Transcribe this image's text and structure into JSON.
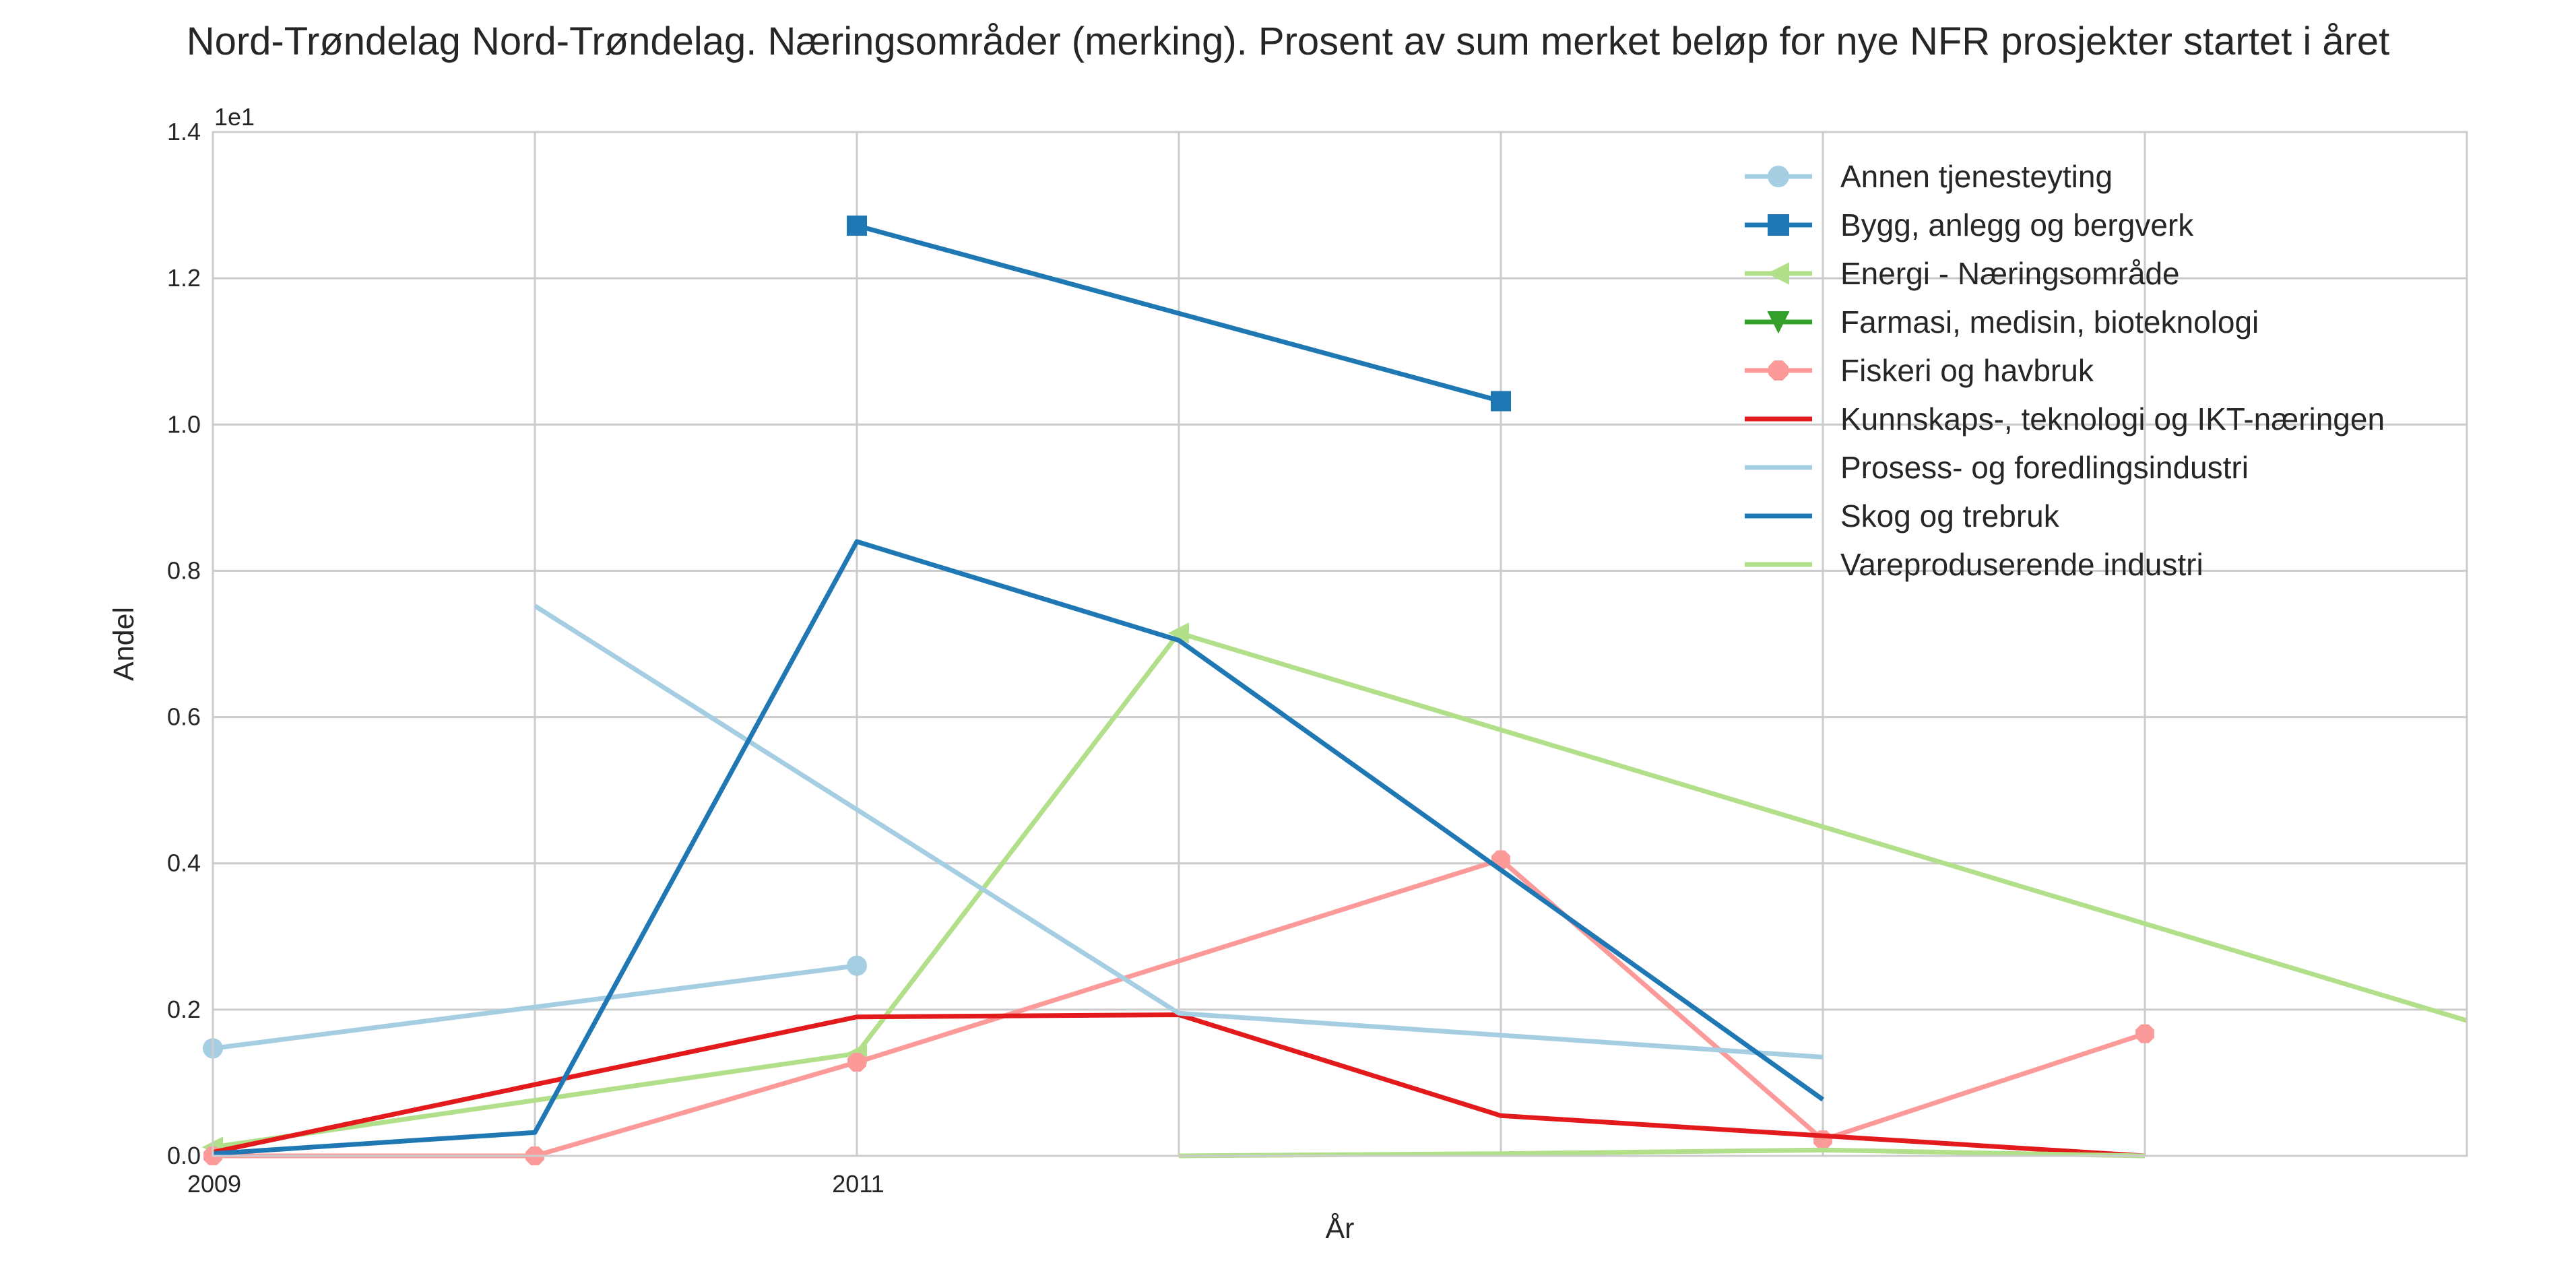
{
  "chart_data": {
    "type": "line",
    "title": "Nord-Trøndelag Nord-Trøndelag. Næringsområder (merking). Prosent av sum merket beløp for nye NFR prosjekter startet i året",
    "xlabel": "År",
    "ylabel": "Andel",
    "y_offset_label": "1e1",
    "xlim": [
      2009,
      2016
    ],
    "ylim": [
      0,
      1.4
    ],
    "x_tick_values": [
      2009,
      2011
    ],
    "x_tick_labels": [
      "2009",
      "2011"
    ],
    "x_gridlines": [
      2009,
      2010,
      2011,
      2012,
      2013,
      2014,
      2015,
      2016
    ],
    "y_ticks": [
      0.0,
      0.2,
      0.4,
      0.6,
      0.8,
      1.0,
      1.2,
      1.4
    ],
    "y_tick_labels": [
      "0.0",
      "0.2",
      "0.4",
      "0.6",
      "0.8",
      "1.0",
      "1.2",
      "1.4"
    ],
    "grid": true,
    "legend_position": "top-right",
    "series": [
      {
        "name": "Annen tjenesteyting",
        "color": "#a6cee3",
        "marker": "circle",
        "x": [
          2009,
          2011
        ],
        "y": [
          0.147,
          0.26
        ]
      },
      {
        "name": "Bygg, anlegg og bergverk",
        "color": "#1f78b4",
        "marker": "square",
        "x": [
          2011,
          2013
        ],
        "y": [
          1.272,
          1.032
        ]
      },
      {
        "name": "Energi - Næringsområde",
        "color": "#b2df8a",
        "marker": "triangle-left",
        "x": [
          2009,
          2011,
          2012
        ],
        "y": [
          0.012,
          0.14,
          0.715
        ]
      },
      {
        "name": "Farmasi, medisin, bioteknologi",
        "color": "#33a02c",
        "marker": "triangle-down",
        "x": [],
        "y": []
      },
      {
        "name": "Fiskeri og havbruk",
        "color": "#fb9a99",
        "marker": "octagon",
        "x": [
          2009,
          2010,
          2011,
          2013,
          2014,
          2015
        ],
        "y": [
          0.0,
          0.0,
          0.128,
          0.405,
          0.022,
          0.167
        ]
      },
      {
        "name": "Kunnskaps-, teknologi og IKT-næringen",
        "color": "#e31a1c",
        "marker": "none",
        "x": [
          2009,
          2011,
          2012,
          2013,
          2015
        ],
        "y": [
          0.005,
          0.19,
          0.193,
          0.055,
          0.0
        ]
      },
      {
        "name": "Prosess- og foredlingsindustri",
        "color": "#a6cee3",
        "marker": "none",
        "x": [
          2010,
          2012,
          2014
        ],
        "y": [
          0.752,
          0.195,
          0.135
        ]
      },
      {
        "name": "Skog og trebruk",
        "color": "#1f78b4",
        "marker": "none",
        "x": [
          2009,
          2010,
          2011,
          2012,
          2014
        ],
        "y": [
          0.003,
          0.032,
          0.84,
          0.705,
          0.077
        ]
      },
      {
        "name": "Vareproduserende industri",
        "color": "#b2df8a",
        "marker": "none",
        "x": [
          2012,
          2013,
          2014,
          2015,
          2012,
          2016
        ],
        "y": [
          0.0,
          0.003,
          0.008,
          0.0,
          0.715,
          0.185
        ],
        "segments": [
          [
            0,
            4
          ],
          [
            4,
            6
          ]
        ]
      }
    ]
  }
}
